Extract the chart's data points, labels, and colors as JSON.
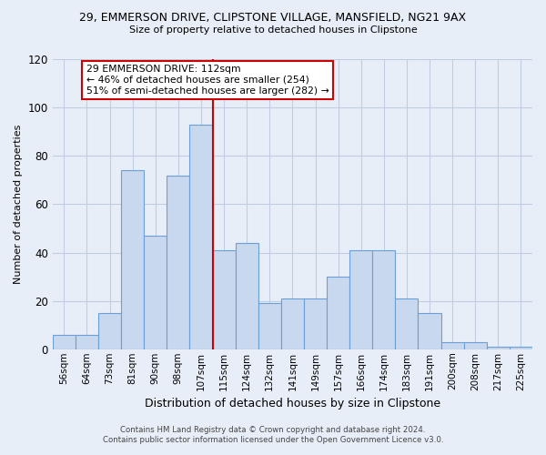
{
  "title1": "29, EMMERSON DRIVE, CLIPSTONE VILLAGE, MANSFIELD, NG21 9AX",
  "title2": "Size of property relative to detached houses in Clipstone",
  "xlabel": "Distribution of detached houses by size in Clipstone",
  "ylabel": "Number of detached properties",
  "bar_labels": [
    "56sqm",
    "64sqm",
    "73sqm",
    "81sqm",
    "90sqm",
    "98sqm",
    "107sqm",
    "115sqm",
    "124sqm",
    "132sqm",
    "141sqm",
    "149sqm",
    "157sqm",
    "166sqm",
    "174sqm",
    "183sqm",
    "191sqm",
    "200sqm",
    "208sqm",
    "217sqm",
    "225sqm"
  ],
  "bar_heights": [
    6,
    6,
    15,
    74,
    47,
    72,
    93,
    41,
    44,
    19,
    21,
    21,
    30,
    41,
    41,
    21,
    15,
    3,
    3,
    1,
    1
  ],
  "bar_color": "#c8d8ee",
  "bar_edge_color": "#6a9fd8",
  "vline_color": "#cc0000",
  "annotation_title": "29 EMMERSON DRIVE: 112sqm",
  "annotation_line1": "← 46% of detached houses are smaller (254)",
  "annotation_line2": "51% of semi-detached houses are larger (282) →",
  "annotation_box_color": "#ffffff",
  "annotation_box_edge": "#cc0000",
  "ylim": [
    0,
    120
  ],
  "yticks": [
    0,
    20,
    40,
    60,
    80,
    100,
    120
  ],
  "footer1": "Contains HM Land Registry data © Crown copyright and database right 2024.",
  "footer2": "Contains public sector information licensed under the Open Government Licence v3.0.",
  "bg_color": "#e8eef8",
  "plot_bg_color": "#e8eef8",
  "grid_color": "#c0cce0"
}
